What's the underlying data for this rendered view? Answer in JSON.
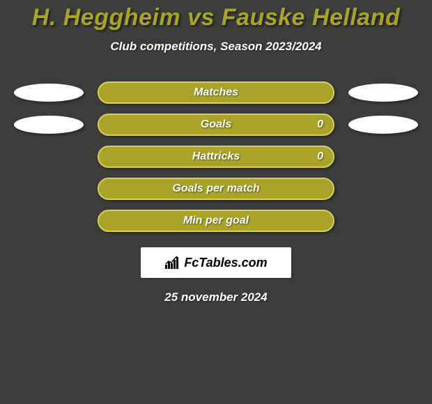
{
  "background_color": "#3d3d3b",
  "text_color": "#ffffff",
  "title_color": "#a9a429",
  "bar_fill_color": "#a9a429",
  "bar_border_color": "#d6d060",
  "badge_left_color": "#ffffff",
  "badge_right_color": "#ffffff",
  "title": "H. Heggheim vs Fauske Helland",
  "subtitle": "Club competitions, Season 2023/2024",
  "date": "25 november 2024",
  "logo_text": "FcTables.com",
  "rows": [
    {
      "label": "Matches",
      "show_badges": true,
      "value_right": ""
    },
    {
      "label": "Goals",
      "show_badges": true,
      "value_right": "0"
    },
    {
      "label": "Hattricks",
      "show_badges": false,
      "value_right": "0"
    },
    {
      "label": "Goals per match",
      "show_badges": false,
      "value_right": ""
    },
    {
      "label": "Min per goal",
      "show_badges": false,
      "value_right": ""
    }
  ],
  "title_fontsize": 34,
  "subtitle_fontsize": 17,
  "bar_label_fontsize": 16,
  "date_fontsize": 17
}
